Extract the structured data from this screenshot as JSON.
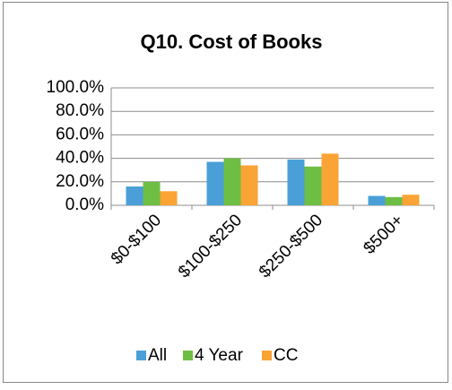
{
  "chart_data": {
    "type": "bar",
    "title": "Q10. Cost of Books",
    "categories": [
      "$0-$100",
      "$100-$250",
      "$250-$500",
      "$500+"
    ],
    "series": [
      {
        "name": "All",
        "color": "#4a9fd8",
        "values": [
          16,
          37,
          39,
          8
        ]
      },
      {
        "name": "4 Year",
        "color": "#6fbe44",
        "values": [
          20,
          40,
          33,
          7
        ]
      },
      {
        "name": "CC",
        "color": "#f9a435",
        "values": [
          12,
          34,
          44,
          9
        ]
      }
    ],
    "ylim": [
      0,
      100
    ],
    "yticks": [
      {
        "value": 0,
        "label": "0.0%"
      },
      {
        "value": 20,
        "label": "20.0%"
      },
      {
        "value": 40,
        "label": "40.0%"
      },
      {
        "value": 60,
        "label": "60.0%"
      },
      {
        "value": 80,
        "label": "80.0%"
      },
      {
        "value": 100,
        "label": "100.0%"
      }
    ],
    "grid": true,
    "legend": "bottom"
  }
}
